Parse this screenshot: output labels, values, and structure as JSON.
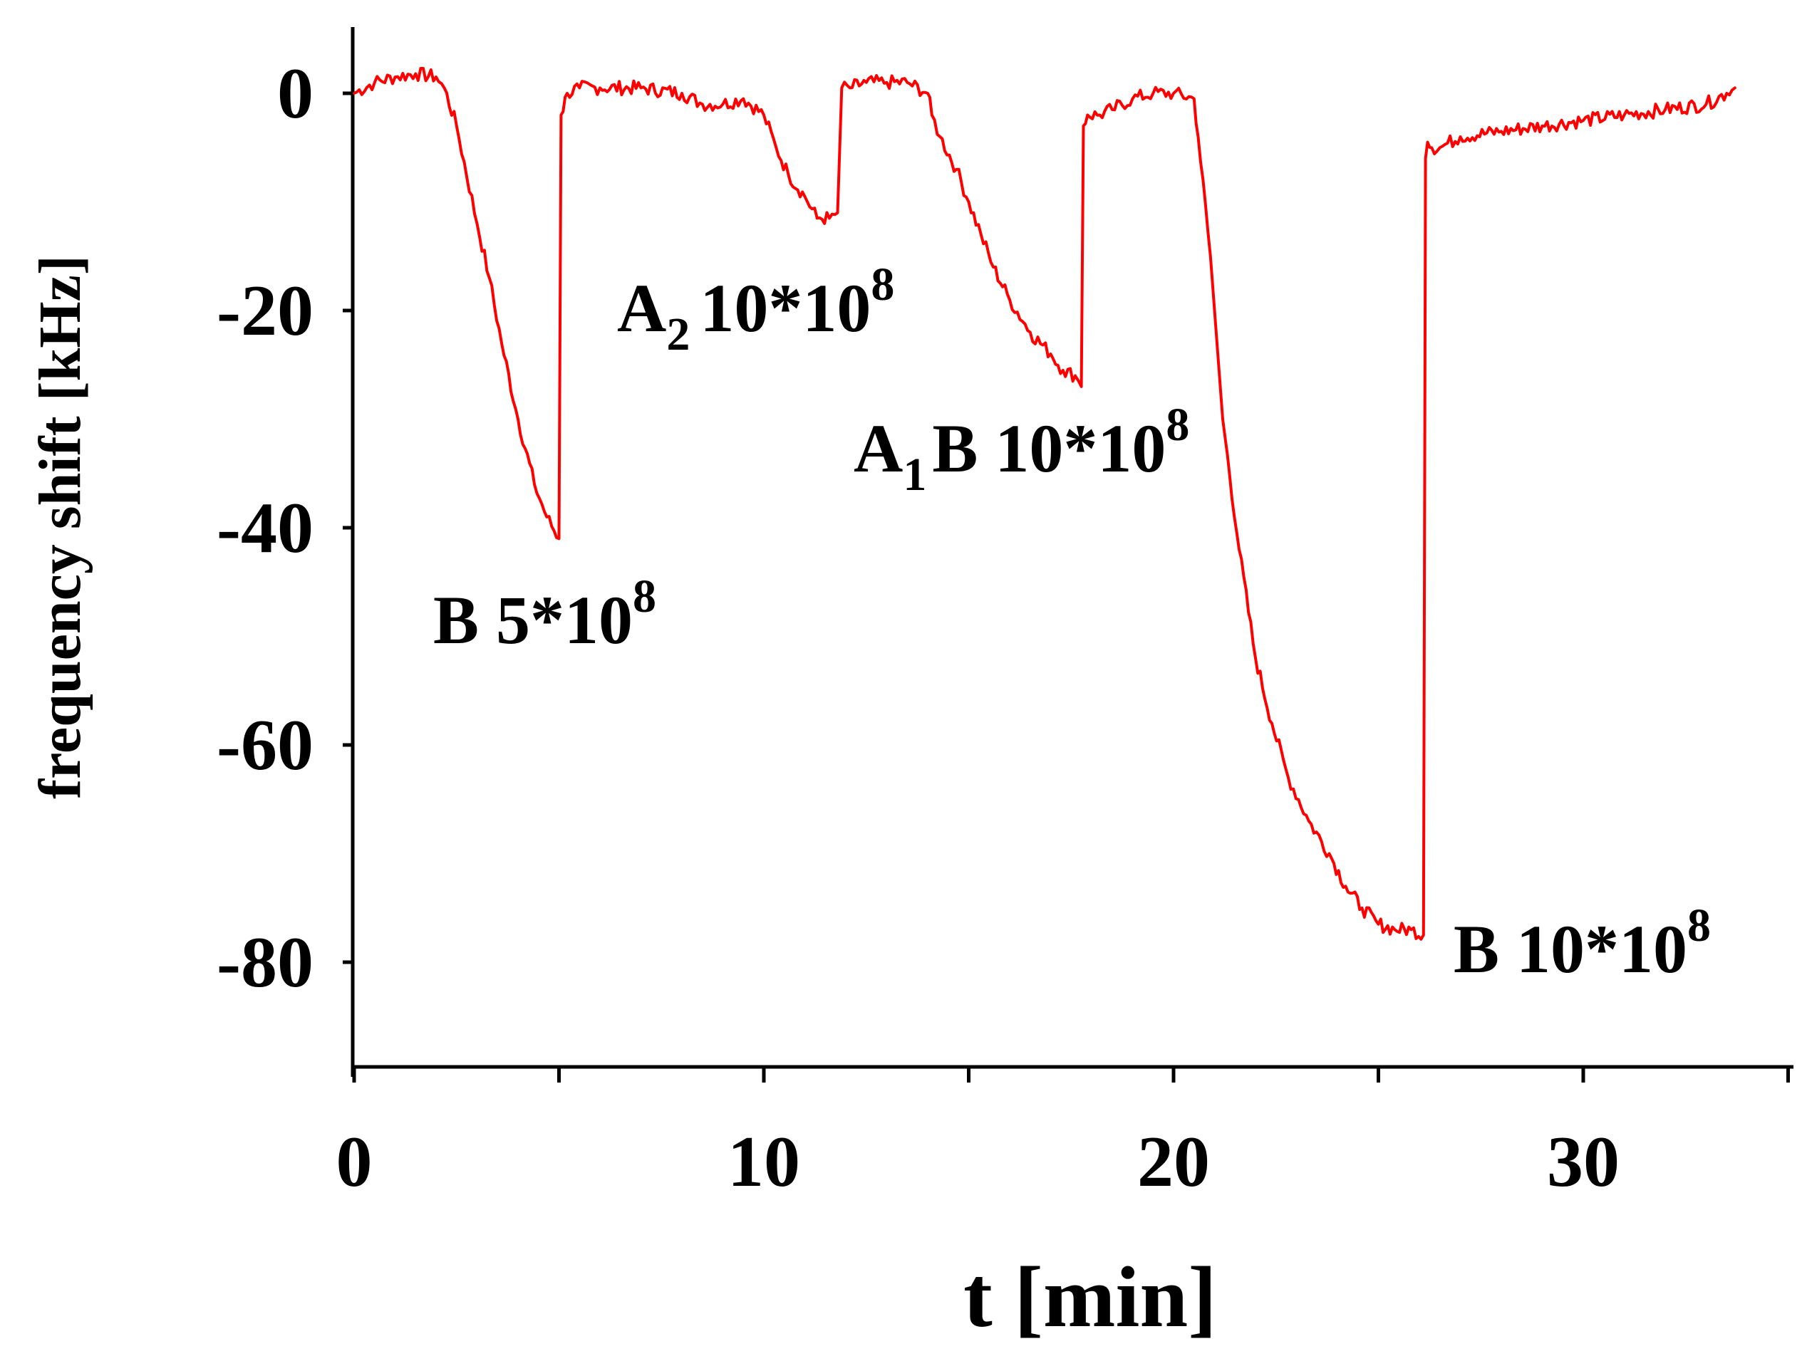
{
  "chart_data": {
    "type": "line",
    "xlabel": "t [min]",
    "ylabel": "frequency shift [kHz]",
    "xlim": [
      0,
      35
    ],
    "ylim": [
      -90,
      6
    ],
    "xticks": [
      0,
      10,
      20,
      30
    ],
    "xtick_labels": [
      "0",
      "10",
      "20",
      "30"
    ],
    "x_minor_ticks": [
      5,
      15,
      25,
      35
    ],
    "yticks": [
      0,
      -20,
      -40,
      -60,
      -80
    ],
    "ytick_labels": [
      "0",
      "-20",
      "-40",
      "-60",
      "-80"
    ],
    "grid": false,
    "legend": "none",
    "series": [
      {
        "color": "#ff0000",
        "x": [
          0,
          0.5,
          1,
          1.5,
          2,
          2.2,
          2.5,
          3,
          3.3,
          3.6,
          4,
          4.4,
          4.7,
          5,
          5.05,
          5.2,
          5.5,
          6,
          7,
          8,
          8.5,
          9,
          9.5,
          10,
          10.3,
          10.6,
          11,
          11.3,
          11.6,
          11.8,
          11.9,
          12.1,
          12.5,
          13,
          13.5,
          14,
          14.1,
          14.3,
          14.7,
          15,
          15.3,
          15.6,
          16,
          16.5,
          17,
          17.3,
          17.6,
          17.75,
          17.8,
          17.9,
          18.2,
          18.5,
          19,
          19.5,
          20,
          20.5,
          20.6,
          20.9,
          21.2,
          21.6,
          22,
          22.4,
          22.8,
          23.3,
          23.8,
          24.2,
          24.6,
          25,
          25.4,
          25.8,
          26.1,
          26.15,
          26.2,
          26.3,
          26.5,
          27,
          28,
          29,
          30,
          31,
          32,
          33,
          33.5,
          33.7
        ],
        "y": [
          0,
          1,
          1.5,
          1.8,
          1.5,
          0.5,
          -3,
          -12,
          -17,
          -23,
          -30,
          -36,
          -39,
          -41,
          -2,
          0,
          0.5,
          0.5,
          0.5,
          0,
          -1,
          -1,
          -0.5,
          -2,
          -5,
          -7.5,
          -9.5,
          -11.5,
          -11.5,
          -11,
          0.5,
          0.5,
          1,
          1,
          1,
          0,
          -2,
          -4,
          -7,
          -10,
          -13,
          -16,
          -19,
          -22,
          -24,
          -25.5,
          -26,
          -27,
          -3,
          -2,
          -2,
          -1.5,
          -0.5,
          0,
          0,
          -0.5,
          -4,
          -15,
          -30,
          -42,
          -52,
          -58,
          -63,
          -67,
          -70,
          -73,
          -75,
          -76.5,
          -77,
          -77,
          -77.5,
          -6,
          -4.5,
          -5,
          -5,
          -4,
          -3.5,
          -3,
          -2.5,
          -2,
          -1.5,
          -1,
          0,
          0.5
        ]
      }
    ],
    "annotations": [
      {
        "main": "B 5*10",
        "sup": "8"
      },
      {
        "main": "A",
        "sub": "2",
        "rest": "10*10",
        "sup": "8"
      },
      {
        "main": "A",
        "sub": "1",
        "rest": "B 10*10",
        "sup": "8"
      },
      {
        "main": "B 10*10",
        "sup": "8"
      }
    ]
  }
}
